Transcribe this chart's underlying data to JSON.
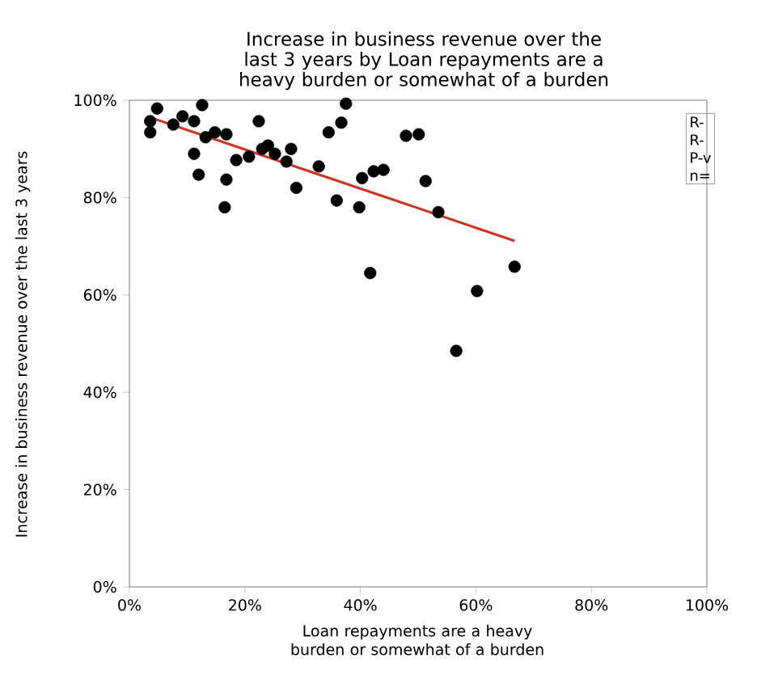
{
  "chart_data": {
    "type": "scatter",
    "title": "Increase in business revenue over the last 3 years by Loan repayments are a heavy burden or somewhat of a burden",
    "xlabel": "Loan repayments are a heavy burden or somewhat of a burden",
    "ylabel": "Increase in business revenue over the last 3 years",
    "xlim": [
      0,
      100
    ],
    "ylim": [
      0,
      100
    ],
    "xticks": [
      {
        "value": 0,
        "label": "0%"
      },
      {
        "value": 20,
        "label": "20%"
      },
      {
        "value": 40,
        "label": "40%"
      },
      {
        "value": 60,
        "label": "60%"
      },
      {
        "value": 80,
        "label": "80%"
      },
      {
        "value": 100,
        "label": "100%"
      }
    ],
    "yticks": [
      {
        "value": 0,
        "label": "0%"
      },
      {
        "value": 20,
        "label": "20%"
      },
      {
        "value": 40,
        "label": "40%"
      },
      {
        "value": 60,
        "label": "60%"
      },
      {
        "value": 80,
        "label": "80%"
      },
      {
        "value": 100,
        "label": "100%"
      }
    ],
    "series": [
      {
        "marker": "circle",
        "color": "#000000",
        "x": [
          3.6,
          3.6,
          4.8,
          7.6,
          9.2,
          11.2,
          11.2,
          12.0,
          12.6,
          13.2,
          14.8,
          16.8,
          16.8,
          16.5,
          18.5,
          20.7,
          22.4,
          23.0,
          24.0,
          25.2,
          27.2,
          28.0,
          28.9,
          32.8,
          34.5,
          35.9,
          36.7,
          37.5,
          39.8,
          40.3,
          42.3,
          44.0,
          41.7,
          47.9,
          50.1,
          51.3,
          53.5,
          56.6,
          60.2,
          66.7
        ],
        "values": [
          93.4,
          95.7,
          98.3,
          95.0,
          96.7,
          95.7,
          89.0,
          84.7,
          99.0,
          92.4,
          93.4,
          93.0,
          83.7,
          78.0,
          87.7,
          88.4,
          95.7,
          90.0,
          90.7,
          89.0,
          87.4,
          90.0,
          82.0,
          86.4,
          93.4,
          79.4,
          95.4,
          99.3,
          78.0,
          84.0,
          85.4,
          85.7,
          64.5,
          92.7,
          93.0,
          83.4,
          77.0,
          48.5,
          60.8,
          65.8
        ]
      },
      {
        "type": "line",
        "color": "#d62f1e",
        "x": [
          3.0,
          66.7
        ],
        "values": [
          96.7,
          71.1
        ]
      }
    ],
    "annotations": [
      "R-",
      "R-",
      "P-v",
      "n="
    ]
  }
}
